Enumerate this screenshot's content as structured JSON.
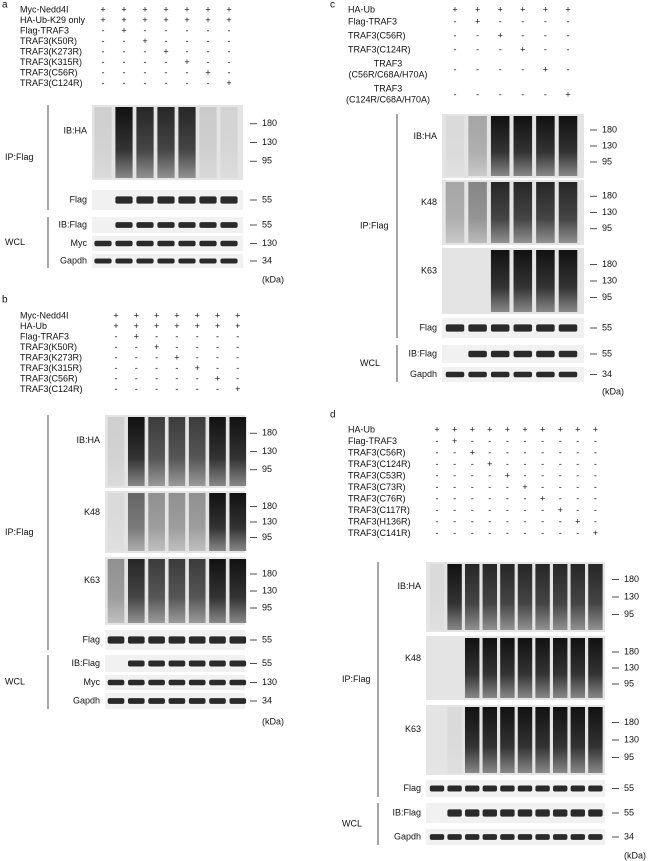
{
  "panels": [
    {
      "letter": "a",
      "rows": [
        {
          "label": "Myc-Nedd4I",
          "signs": [
            "+",
            "+",
            "+",
            "+",
            "+",
            "+",
            "+"
          ]
        },
        {
          "label": "HA-Ub-K29 only",
          "signs": [
            "+",
            "+",
            "+",
            "+",
            "+",
            "+",
            "+"
          ]
        },
        {
          "label": "Flag-TRAF3",
          "signs": [
            "-",
            "+",
            "-",
            "-",
            "-",
            "-",
            "-"
          ]
        },
        {
          "label": "TRAF3(K50R)",
          "signs": [
            "-",
            "-",
            "+",
            "-",
            "-",
            "-",
            "-"
          ]
        },
        {
          "label": "TRAF3(K273R)",
          "signs": [
            "-",
            "-",
            "-",
            "+",
            "-",
            "-",
            "-"
          ]
        },
        {
          "label": "TRAF3(K315R)",
          "signs": [
            "-",
            "-",
            "-",
            "-",
            "+",
            "-",
            "-"
          ]
        },
        {
          "label": "TRAF3(C56R)",
          "signs": [
            "-",
            "-",
            "-",
            "-",
            "-",
            "+",
            "-"
          ]
        },
        {
          "label": "TRAF3(C124R)",
          "signs": [
            "-",
            "-",
            "-",
            "-",
            "-",
            "-",
            "+"
          ]
        }
      ],
      "groups": [
        {
          "label": "IP:Flag",
          "blots": [
            {
              "label": "IB:HA",
              "markers": [
                "180",
                "130",
                "95"
              ]
            },
            {
              "label": "Flag",
              "markers": [
                "55"
              ]
            }
          ]
        },
        {
          "label": "WCL",
          "blots": [
            {
              "label": "IB:Flag",
              "markers": [
                "55"
              ]
            },
            {
              "label": "Myc",
              "markers": [
                "130"
              ]
            },
            {
              "label": "Gapdh",
              "markers": [
                "34"
              ]
            }
          ]
        }
      ],
      "unit": "(kDa)"
    },
    {
      "letter": "b",
      "rows": [
        {
          "label": "Myc-Nedd4I",
          "signs": [
            "+",
            "+",
            "+",
            "+",
            "+",
            "+",
            "+"
          ]
        },
        {
          "label": "HA-Ub",
          "signs": [
            "+",
            "+",
            "+",
            "+",
            "+",
            "+",
            "+"
          ]
        },
        {
          "label": "Flag-TRAF3",
          "signs": [
            "-",
            "+",
            "-",
            "-",
            "-",
            "-",
            "-"
          ]
        },
        {
          "label": "TRAF3(K50R)",
          "signs": [
            "-",
            "-",
            "+",
            "-",
            "-",
            "-",
            "-"
          ]
        },
        {
          "label": "TRAF3(K273R)",
          "signs": [
            "-",
            "-",
            "-",
            "+",
            "-",
            "-",
            "-"
          ]
        },
        {
          "label": "TRAF3(K315R)",
          "signs": [
            "-",
            "-",
            "-",
            "-",
            "+",
            "-",
            "-"
          ]
        },
        {
          "label": "TRAF3(C56R)",
          "signs": [
            "-",
            "-",
            "-",
            "-",
            "-",
            "+",
            "-"
          ]
        },
        {
          "label": "TRAF3(C124R)",
          "signs": [
            "-",
            "-",
            "-",
            "-",
            "-",
            "-",
            "+"
          ]
        }
      ],
      "groups": [
        {
          "label": "IP:Flag",
          "blots": [
            {
              "label": "IB:HA",
              "markers": [
                "180",
                "130",
                "95"
              ]
            },
            {
              "label": "K48",
              "markers": [
                "180",
                "130",
                "95"
              ]
            },
            {
              "label": "K63",
              "markers": [
                "180",
                "130",
                "95"
              ]
            },
            {
              "label": "Flag",
              "markers": [
                "55"
              ]
            }
          ]
        },
        {
          "label": "WCL",
          "blots": [
            {
              "label": "IB:Flag",
              "markers": [
                "55"
              ]
            },
            {
              "label": "Myc",
              "markers": [
                "130"
              ]
            },
            {
              "label": "Gapdh",
              "markers": [
                "34"
              ]
            }
          ]
        }
      ],
      "unit": "(kDa)"
    },
    {
      "letter": "c",
      "rows": [
        {
          "label": "HA-Ub",
          "signs": [
            "+",
            "+",
            "+",
            "+",
            "+",
            "+"
          ]
        },
        {
          "label": "Flag-TRAF3",
          "signs": [
            "-",
            "+",
            "-",
            "-",
            "-",
            "-"
          ]
        },
        {
          "label": "TRAF3(C56R)",
          "signs": [
            "-",
            "-",
            "+",
            "-",
            "-",
            "-"
          ]
        },
        {
          "label": "TRAF3(C124R)",
          "signs": [
            "-",
            "-",
            "-",
            "+",
            "-",
            "-"
          ]
        },
        {
          "label": "TRAF3",
          "sublabel": "(C56R/C68A/H70A)",
          "signs": [
            "-",
            "-",
            "-",
            "-",
            "+",
            "-"
          ]
        },
        {
          "label": "TRAF3",
          "sublabel": "(C124R/C68A/H70A)",
          "signs": [
            "-",
            "-",
            "-",
            "-",
            "-",
            "+"
          ]
        }
      ],
      "groups": [
        {
          "label": "IP:Flag",
          "blots": [
            {
              "label": "IB:HA",
              "markers": [
                "180",
                "130",
                "95"
              ]
            },
            {
              "label": "K48",
              "markers": [
                "180",
                "130",
                "95"
              ]
            },
            {
              "label": "K63",
              "markers": [
                "180",
                "130",
                "95"
              ]
            },
            {
              "label": "Flag",
              "markers": [
                "55"
              ]
            }
          ]
        },
        {
          "label": "WCL",
          "blots": [
            {
              "label": "IB:Flag",
              "markers": [
                "55"
              ]
            },
            {
              "label": "Gapdh",
              "markers": [
                "34"
              ]
            }
          ]
        }
      ],
      "unit": "(kDa)"
    },
    {
      "letter": "d",
      "rows": [
        {
          "label": "HA-Ub",
          "signs": [
            "+",
            "+",
            "+",
            "+",
            "+",
            "+",
            "+",
            "+",
            "+",
            "+"
          ]
        },
        {
          "label": "Flag-TRAF3",
          "signs": [
            "-",
            "+",
            "-",
            "-",
            "-",
            "-",
            "-",
            "-",
            "-",
            "-"
          ]
        },
        {
          "label": "TRAF3(C56R)",
          "signs": [
            "-",
            "-",
            "+",
            "-",
            "-",
            "-",
            "-",
            "-",
            "-",
            "-"
          ]
        },
        {
          "label": "TRAF3(C124R)",
          "signs": [
            "-",
            "-",
            "-",
            "+",
            "-",
            "-",
            "-",
            "-",
            "-",
            "-"
          ]
        },
        {
          "label": "TRAF3(C53R)",
          "signs": [
            "-",
            "-",
            "-",
            "-",
            "+",
            "-",
            "-",
            "-",
            "-",
            "-"
          ]
        },
        {
          "label": "TRAF3(C73R)",
          "signs": [
            "-",
            "-",
            "-",
            "-",
            "-",
            "+",
            "-",
            "-",
            "-",
            "-"
          ]
        },
        {
          "label": "TRAF3(C76R)",
          "signs": [
            "-",
            "-",
            "-",
            "-",
            "-",
            "-",
            "+",
            "-",
            "-",
            "-"
          ]
        },
        {
          "label": "TRAF3(C117R)",
          "signs": [
            "-",
            "-",
            "-",
            "-",
            "-",
            "-",
            "-",
            "+",
            "-",
            "-"
          ]
        },
        {
          "label": "TRAF3(H136R)",
          "signs": [
            "-",
            "-",
            "-",
            "-",
            "-",
            "-",
            "-",
            "-",
            "+",
            "-"
          ]
        },
        {
          "label": "TRAF3(C141R)",
          "signs": [
            "-",
            "-",
            "-",
            "-",
            "-",
            "-",
            "-",
            "-",
            "-",
            "+"
          ]
        }
      ],
      "groups": [
        {
          "label": "IP:Flag",
          "blots": [
            {
              "label": "IB:HA",
              "markers": [
                "180",
                "130",
                "95"
              ]
            },
            {
              "label": "K48",
              "markers": [
                "180",
                "130",
                "95"
              ]
            },
            {
              "label": "K63",
              "markers": [
                "180",
                "130",
                "95"
              ]
            },
            {
              "label": "Flag",
              "markers": [
                "55"
              ]
            }
          ]
        },
        {
          "label": "WCL",
          "blots": [
            {
              "label": "IB:Flag",
              "markers": [
                "55"
              ]
            },
            {
              "label": "Gapdh",
              "markers": [
                "34"
              ]
            }
          ]
        }
      ],
      "unit": "(kDa)"
    }
  ]
}
